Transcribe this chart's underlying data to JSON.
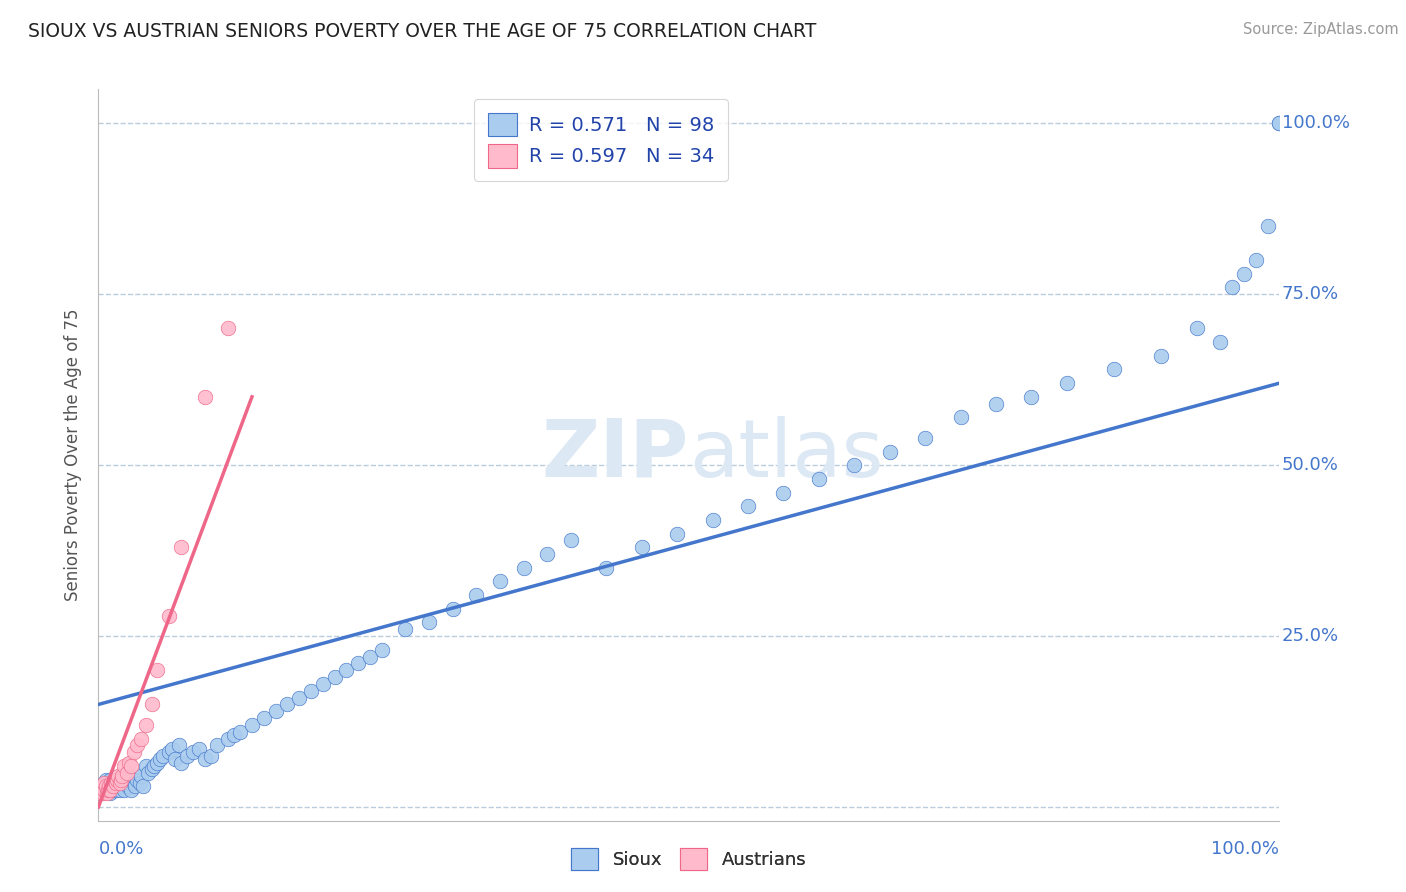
{
  "title": "SIOUX VS AUSTRIAN SENIORS POVERTY OVER THE AGE OF 75 CORRELATION CHART",
  "source": "Source: ZipAtlas.com",
  "ylabel": "Seniors Poverty Over the Age of 75",
  "xlim": [
    0.0,
    1.0
  ],
  "ylim": [
    -0.02,
    1.05
  ],
  "ytick_values": [
    0.0,
    0.25,
    0.5,
    0.75,
    1.0
  ],
  "ytick_labels": [
    "",
    "25.0%",
    "50.0%",
    "75.0%",
    "100.0%"
  ],
  "sioux_R": 0.571,
  "sioux_N": 98,
  "austrian_R": 0.597,
  "austrian_N": 34,
  "sioux_color": "#aaccee",
  "austrian_color": "#ffbbcc",
  "sioux_line_color": "#4477cc",
  "austrian_line_color": "#ee6688",
  "background_color": "#ffffff",
  "watermark_color": "#dde8f5",
  "legend_text_color": "#2244aa",
  "grid_color": "#bbccdd",
  "title_color": "#222222",
  "axis_label_color": "#4477cc",
  "sioux_x": [
    0.002,
    0.003,
    0.005,
    0.005,
    0.006,
    0.007,
    0.008,
    0.009,
    0.01,
    0.01,
    0.012,
    0.013,
    0.014,
    0.015,
    0.015,
    0.016,
    0.017,
    0.018,
    0.019,
    0.02,
    0.021,
    0.022,
    0.023,
    0.025,
    0.026,
    0.027,
    0.028,
    0.03,
    0.031,
    0.033,
    0.035,
    0.036,
    0.038,
    0.04,
    0.042,
    0.045,
    0.047,
    0.05,
    0.052,
    0.055,
    0.06,
    0.062,
    0.065,
    0.068,
    0.07,
    0.075,
    0.08,
    0.085,
    0.09,
    0.095,
    0.1,
    0.11,
    0.115,
    0.12,
    0.13,
    0.14,
    0.15,
    0.16,
    0.17,
    0.18,
    0.19,
    0.2,
    0.21,
    0.22,
    0.23,
    0.24,
    0.26,
    0.28,
    0.3,
    0.32,
    0.34,
    0.36,
    0.38,
    0.4,
    0.43,
    0.46,
    0.49,
    0.52,
    0.55,
    0.58,
    0.61,
    0.64,
    0.67,
    0.7,
    0.73,
    0.76,
    0.79,
    0.82,
    0.86,
    0.9,
    0.93,
    0.95,
    0.96,
    0.97,
    0.98,
    0.99,
    1.0,
    1.0
  ],
  "sioux_y": [
    0.02,
    0.025,
    0.03,
    0.035,
    0.04,
    0.03,
    0.025,
    0.035,
    0.02,
    0.04,
    0.03,
    0.025,
    0.035,
    0.025,
    0.04,
    0.03,
    0.035,
    0.025,
    0.04,
    0.03,
    0.035,
    0.025,
    0.045,
    0.03,
    0.035,
    0.04,
    0.025,
    0.035,
    0.03,
    0.04,
    0.035,
    0.045,
    0.03,
    0.06,
    0.05,
    0.055,
    0.06,
    0.065,
    0.07,
    0.075,
    0.08,
    0.085,
    0.07,
    0.09,
    0.065,
    0.075,
    0.08,
    0.085,
    0.07,
    0.075,
    0.09,
    0.1,
    0.105,
    0.11,
    0.12,
    0.13,
    0.14,
    0.15,
    0.16,
    0.17,
    0.18,
    0.19,
    0.2,
    0.21,
    0.22,
    0.23,
    0.26,
    0.27,
    0.29,
    0.31,
    0.33,
    0.35,
    0.37,
    0.39,
    0.35,
    0.38,
    0.4,
    0.42,
    0.44,
    0.46,
    0.48,
    0.5,
    0.52,
    0.54,
    0.57,
    0.59,
    0.6,
    0.62,
    0.64,
    0.66,
    0.7,
    0.68,
    0.76,
    0.78,
    0.8,
    0.85,
    1.0,
    1.0
  ],
  "austrian_x": [
    0.001,
    0.002,
    0.003,
    0.004,
    0.005,
    0.005,
    0.006,
    0.007,
    0.008,
    0.009,
    0.01,
    0.011,
    0.012,
    0.013,
    0.015,
    0.016,
    0.017,
    0.018,
    0.019,
    0.02,
    0.022,
    0.024,
    0.026,
    0.028,
    0.03,
    0.033,
    0.036,
    0.04,
    0.045,
    0.05,
    0.06,
    0.07,
    0.09,
    0.11
  ],
  "austrian_y": [
    0.02,
    0.025,
    0.03,
    0.02,
    0.025,
    0.035,
    0.03,
    0.02,
    0.025,
    0.03,
    0.025,
    0.035,
    0.03,
    0.04,
    0.035,
    0.04,
    0.045,
    0.035,
    0.04,
    0.045,
    0.06,
    0.05,
    0.065,
    0.06,
    0.08,
    0.09,
    0.1,
    0.12,
    0.15,
    0.2,
    0.28,
    0.38,
    0.6,
    0.7
  ],
  "sioux_trendline_x": [
    0.0,
    1.0
  ],
  "sioux_trendline_y": [
    0.15,
    0.62
  ],
  "austrian_trendline_x": [
    0.0,
    0.13
  ],
  "austrian_trendline_y": [
    0.0,
    0.6
  ]
}
